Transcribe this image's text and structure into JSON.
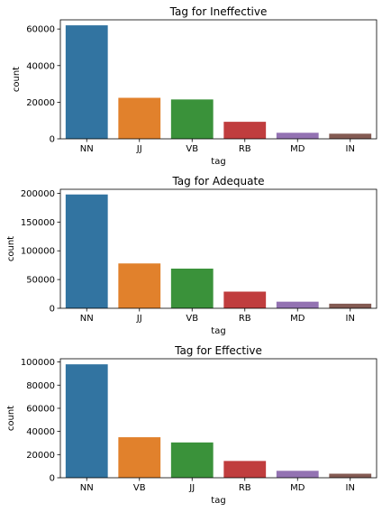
{
  "chart_data": [
    {
      "type": "bar",
      "title": "Tag for Ineffective",
      "xlabel": "tag",
      "ylabel": "count",
      "categories": [
        "NN",
        "JJ",
        "VB",
        "RB",
        "MD",
        "IN"
      ],
      "values": [
        62000,
        22400,
        21500,
        9300,
        3300,
        2800
      ],
      "ylim": [
        0,
        65000
      ],
      "yticks": [
        0,
        20000,
        40000,
        60000
      ],
      "grid": false
    },
    {
      "type": "bar",
      "title": "Tag for Adequate",
      "xlabel": "tag",
      "ylabel": "count",
      "categories": [
        "NN",
        "JJ",
        "VB",
        "RB",
        "MD",
        "IN"
      ],
      "values": [
        198000,
        78000,
        69000,
        29000,
        11500,
        8000
      ],
      "ylim": [
        0,
        207000
      ],
      "yticks": [
        0,
        50000,
        100000,
        150000,
        200000
      ],
      "grid": false
    },
    {
      "type": "bar",
      "title": "Tag for Effective",
      "xlabel": "tag",
      "ylabel": "count",
      "categories": [
        "NN",
        "VB",
        "JJ",
        "RB",
        "MD",
        "IN"
      ],
      "values": [
        98000,
        35000,
        30500,
        14500,
        6000,
        3500
      ],
      "ylim": [
        0,
        102800
      ],
      "yticks": [
        0,
        20000,
        40000,
        60000,
        80000,
        100000
      ],
      "grid": false
    }
  ],
  "palette": [
    "#3274a1",
    "#e1812c",
    "#3a923a",
    "#c03d3e",
    "#9372b2",
    "#845b53"
  ]
}
